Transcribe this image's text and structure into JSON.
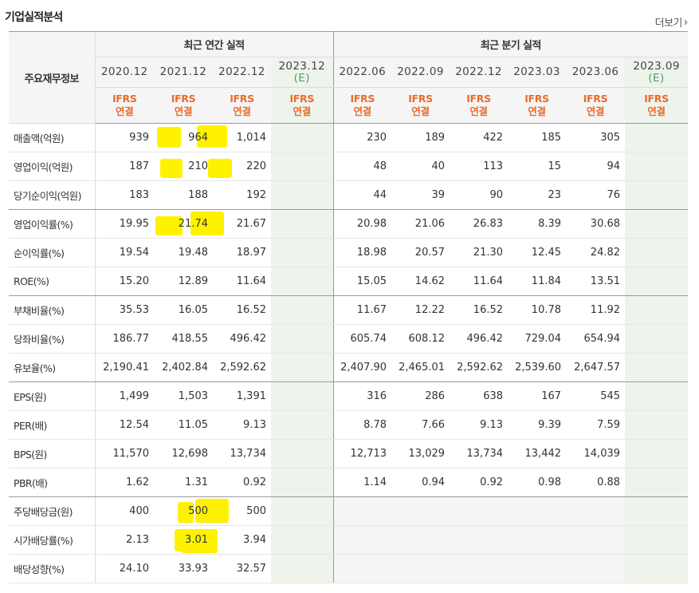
{
  "header": {
    "title": "기업실적분석",
    "more_label": "더보기"
  },
  "table": {
    "row_header_label": "주요재무정보",
    "annual_label": "최근 연간 실적",
    "quarter_label": "최근 분기 실적",
    "annual_periods": [
      {
        "period": "2020.12",
        "est": "",
        "ifrs": "IFRS",
        "basis": "연결"
      },
      {
        "period": "2021.12",
        "est": "",
        "ifrs": "IFRS",
        "basis": "연결"
      },
      {
        "period": "2022.12",
        "est": "",
        "ifrs": "IFRS",
        "basis": "연결"
      },
      {
        "period": "2023.12",
        "est": "(E)",
        "ifrs": "IFRS",
        "basis": "연결"
      }
    ],
    "quarter_periods": [
      {
        "period": "2022.06",
        "est": "",
        "ifrs": "IFRS",
        "basis": "연결"
      },
      {
        "period": "2022.09",
        "est": "",
        "ifrs": "IFRS",
        "basis": "연결"
      },
      {
        "period": "2022.12",
        "est": "",
        "ifrs": "IFRS",
        "basis": "연결"
      },
      {
        "period": "2023.03",
        "est": "",
        "ifrs": "IFRS",
        "basis": "연결"
      },
      {
        "period": "2023.06",
        "est": "",
        "ifrs": "IFRS",
        "basis": "연결"
      },
      {
        "period": "2023.09",
        "est": "(E)",
        "ifrs": "IFRS",
        "basis": "연결"
      }
    ],
    "rows": [
      {
        "label": "매출액(억원)",
        "values": [
          "939",
          "964",
          "1,014",
          "",
          "230",
          "189",
          "422",
          "185",
          "305",
          ""
        ]
      },
      {
        "label": "영업이익(억원)",
        "values": [
          "187",
          "210",
          "220",
          "",
          "48",
          "40",
          "113",
          "15",
          "94",
          ""
        ]
      },
      {
        "label": "당기순이익(억원)",
        "values": [
          "183",
          "188",
          "192",
          "",
          "44",
          "39",
          "90",
          "23",
          "76",
          ""
        ]
      },
      {
        "label": "영업이익률(%)",
        "values": [
          "19.95",
          "21.74",
          "21.67",
          "",
          "20.98",
          "21.06",
          "26.83",
          "8.39",
          "30.68",
          ""
        ]
      },
      {
        "label": "순이익률(%)",
        "values": [
          "19.54",
          "19.48",
          "18.97",
          "",
          "18.98",
          "20.57",
          "21.30",
          "12.45",
          "24.82",
          ""
        ]
      },
      {
        "label": "ROE(%)",
        "values": [
          "15.20",
          "12.89",
          "11.64",
          "",
          "15.05",
          "14.62",
          "11.64",
          "11.84",
          "13.51",
          ""
        ]
      },
      {
        "label": "부채비율(%)",
        "values": [
          "35.53",
          "16.05",
          "16.52",
          "",
          "11.67",
          "12.22",
          "16.52",
          "10.78",
          "11.92",
          ""
        ]
      },
      {
        "label": "당좌비율(%)",
        "values": [
          "186.77",
          "418.55",
          "496.42",
          "",
          "605.74",
          "608.12",
          "496.42",
          "729.04",
          "654.94",
          ""
        ]
      },
      {
        "label": "유보율(%)",
        "values": [
          "2,190.41",
          "2,402.84",
          "2,592.62",
          "",
          "2,407.90",
          "2,465.01",
          "2,592.62",
          "2,539.60",
          "2,647.57",
          ""
        ]
      },
      {
        "label": "EPS(원)",
        "values": [
          "1,499",
          "1,503",
          "1,391",
          "",
          "316",
          "286",
          "638",
          "167",
          "545",
          ""
        ]
      },
      {
        "label": "PER(배)",
        "values": [
          "12.54",
          "11.05",
          "9.13",
          "",
          "8.78",
          "7.66",
          "9.13",
          "9.39",
          "7.59",
          ""
        ]
      },
      {
        "label": "BPS(원)",
        "values": [
          "11,570",
          "12,698",
          "13,734",
          "",
          "12,713",
          "13,029",
          "13,734",
          "13,442",
          "14,039",
          ""
        ]
      },
      {
        "label": "PBR(배)",
        "values": [
          "1.62",
          "1.31",
          "0.92",
          "",
          "1.14",
          "0.94",
          "0.92",
          "0.98",
          "0.88",
          ""
        ]
      },
      {
        "label": "주당배당금(원)",
        "values": [
          "400",
          "500",
          "500",
          "",
          "",
          "",
          "",
          "",
          "",
          ""
        ]
      },
      {
        "label": "시가배당률(%)",
        "values": [
          "2.13",
          "3.01",
          "3.94",
          "",
          "",
          "",
          "",
          "",
          "",
          ""
        ]
      },
      {
        "label": "배당성향(%)",
        "values": [
          "24.10",
          "33.93",
          "32.57",
          "",
          "",
          "",
          "",
          "",
          "",
          ""
        ]
      }
    ]
  },
  "colors": {
    "ifrs": "#e86d2c",
    "estimate": "#4aa05a",
    "estimate_bg": "#eef3ec",
    "highlight": "#fff200"
  }
}
